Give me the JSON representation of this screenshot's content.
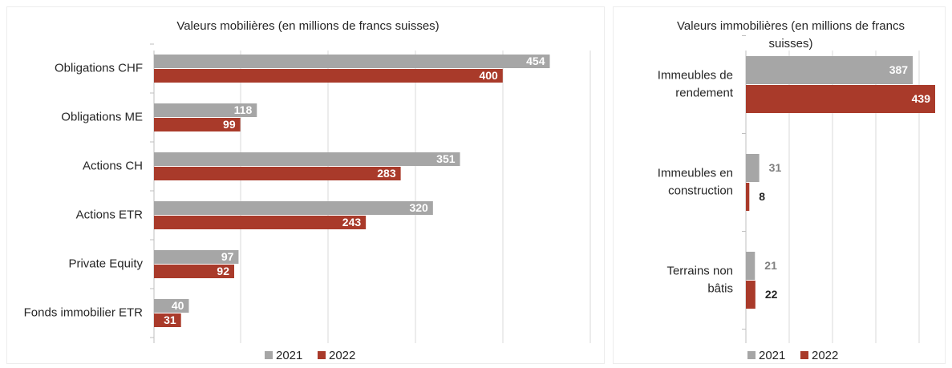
{
  "colors": {
    "s2021": "#a6a6a6",
    "s2022": "#a93a2a"
  },
  "chart_data": [
    {
      "type": "bar",
      "orientation": "horizontal",
      "title": "Valeurs mobilières (en millions de francs suisses)",
      "categories": [
        "Obligations CHF",
        "Obligations ME",
        "Actions CH",
        "Actions ETR",
        "Private Equity",
        "Fonds immobilier ETR"
      ],
      "series": [
        {
          "name": "2021",
          "values": [
            454,
            118,
            351,
            320,
            97,
            40
          ]
        },
        {
          "name": "2022",
          "values": [
            400,
            99,
            283,
            243,
            92,
            31
          ]
        }
      ],
      "xlim": [
        0,
        500
      ],
      "grid": true,
      "legend": "bottom"
    },
    {
      "type": "bar",
      "orientation": "horizontal",
      "title": "Valeurs immobilières (en millions de francs suisses)",
      "categories": [
        "Immeubles de rendement",
        "Immeubles en construction",
        "Terrains non bâtis"
      ],
      "series": [
        {
          "name": "2021",
          "values": [
            387,
            31,
            21
          ]
        },
        {
          "name": "2022",
          "values": [
            439,
            8,
            22
          ]
        }
      ],
      "xlim": [
        0,
        450
      ],
      "grid": true,
      "legend": "bottom"
    }
  ]
}
